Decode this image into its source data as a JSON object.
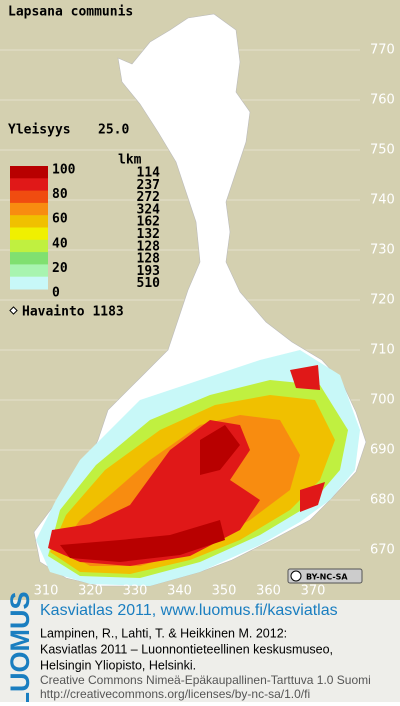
{
  "header": {
    "title": "Lapsana communis",
    "frequency_label": "Yleisyys",
    "frequency_value": "25.0"
  },
  "legend": {
    "scale_labels": [
      "100",
      "80",
      "60",
      "40",
      "20",
      "0"
    ],
    "count_header": "lkm",
    "counts": [
      "114",
      "237",
      "272",
      "324",
      "162",
      "132",
      "128",
      "128",
      "193",
      "510"
    ],
    "colors": [
      "#b80000",
      "#e01818",
      "#f04c10",
      "#f88c10",
      "#f0c000",
      "#f0f000",
      "#c0f040",
      "#80e070",
      "#a8f4b0",
      "#c8f8f8"
    ],
    "observation_label": "Havainto 1183"
  },
  "map": {
    "y_labels": [
      "770",
      "760",
      "750",
      "740",
      "730",
      "720",
      "710",
      "700",
      "690",
      "680",
      "670"
    ],
    "x_labels": [
      "310",
      "320",
      "330",
      "340",
      "350",
      "360",
      "370"
    ],
    "license_badge": "BY-NC-SA"
  },
  "footer": {
    "logo": "LUOMUS",
    "link": "Kasviatlas 2011, www.luomus.fi/kasviatlas",
    "citation": [
      "Lampinen, R., Lahti, T. & Heikkinen M. 2012:",
      "Kasviatlas 2011 – Luonnontieteellinen keskusmuseo,",
      "Helsingin Yliopisto, Helsinki."
    ],
    "license": [
      "Creative Commons Nimeä-Epäkaupallinen-Tarttuva 1.0 Suomi",
      "http://creativecommons.org/licenses/by-nc-sa/1.0/fi"
    ]
  }
}
